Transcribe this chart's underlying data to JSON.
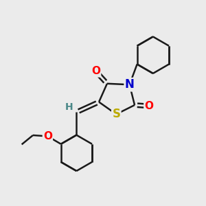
{
  "background_color": "#ebebeb",
  "atom_colors": {
    "C": "#000000",
    "N": "#0000cc",
    "O": "#ff0000",
    "S": "#bbaa00",
    "H": "#4a8888"
  },
  "bond_color": "#1a1a1a",
  "bond_width": 1.8,
  "figsize": [
    3.0,
    3.0
  ],
  "dpi": 100
}
